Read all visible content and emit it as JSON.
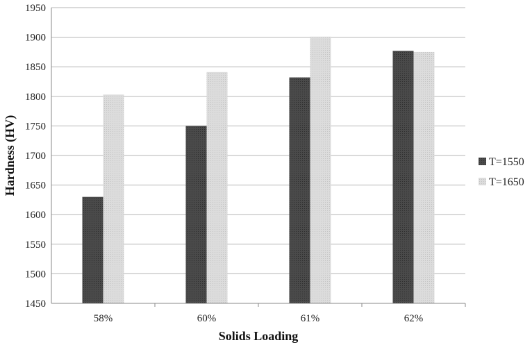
{
  "chart_data": {
    "type": "bar",
    "categories": [
      "58%",
      "60%",
      "61%",
      "62%"
    ],
    "series": [
      {
        "name": "T=1550",
        "values": [
          1630,
          1750,
          1832,
          1877
        ],
        "color": "#4a4a4a"
      },
      {
        "name": "T=1650",
        "values": [
          1803,
          1841,
          1901,
          1875
        ],
        "color": "#d9d9d9"
      }
    ],
    "xlabel": "Solids Loading",
    "ylabel": "Hardness (HV)",
    "ylim": [
      1450,
      1950
    ],
    "yticks": [
      1450,
      1500,
      1550,
      1600,
      1650,
      1700,
      1750,
      1800,
      1850,
      1900,
      1950
    ],
    "grid": true,
    "legend_position": "right"
  }
}
